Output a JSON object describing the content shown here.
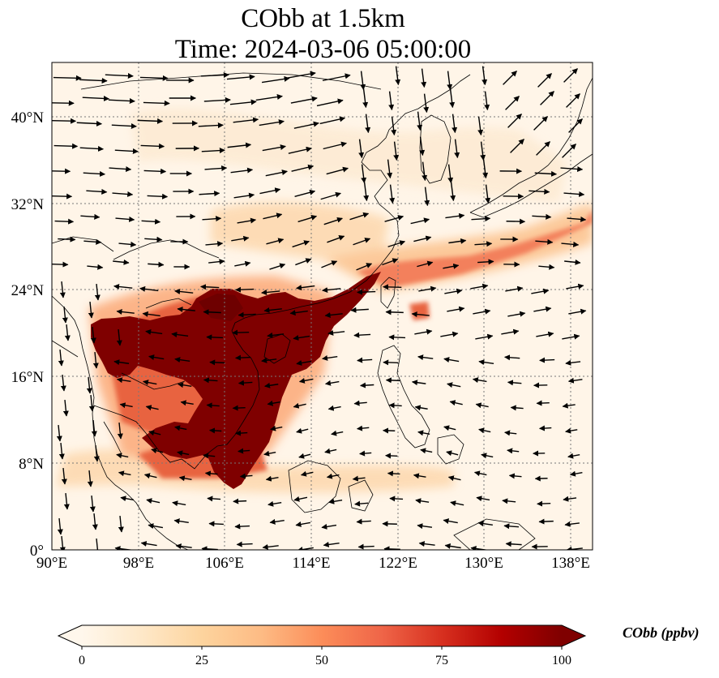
{
  "title": {
    "line1": "CObb at 1.5km",
    "line2": "Time: 2024-03-06 05:00:00"
  },
  "map": {
    "projection": "PlateCarree",
    "lon_range": [
      90,
      140
    ],
    "lat_range": [
      0,
      45
    ],
    "x_ticks": [
      "90°E",
      "98°E",
      "106°E",
      "114°E",
      "122°E",
      "130°E",
      "138°E"
    ],
    "y_ticks": [
      "0°",
      "8°N",
      "16°N",
      "24°N",
      "32°N",
      "40°N"
    ],
    "gridlines": "dotted",
    "field": "CObb",
    "vectors": "wind at 1.5km"
  },
  "colorbar": {
    "label": "CObb (ppbv)",
    "ticks": [
      "0",
      "25",
      "50",
      "75",
      "100"
    ],
    "range": [
      0,
      100
    ],
    "colormap": "OrRd",
    "extend": "both",
    "colors": [
      "#fff7ec",
      "#fee8c8",
      "#fdd49e",
      "#fdbb84",
      "#fc8d59",
      "#ef6548",
      "#d7301f",
      "#b30000",
      "#7f0000"
    ]
  }
}
